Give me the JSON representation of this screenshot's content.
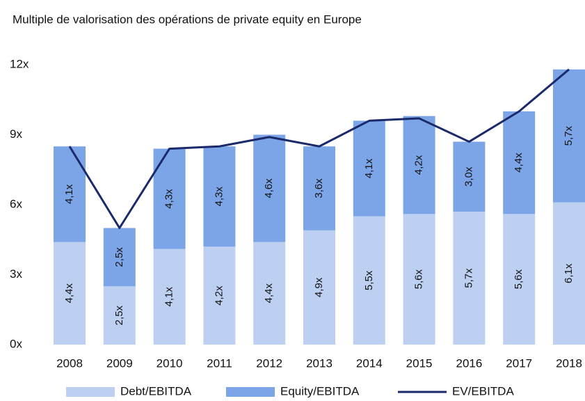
{
  "chart_data": {
    "type": "bar_line",
    "title": "Multiple de valorisation des opérations de private equity en Europe",
    "categories": [
      "2008",
      "2009",
      "2010",
      "2011",
      "2012",
      "2013",
      "2014",
      "2015",
      "2016",
      "2017",
      "2018"
    ],
    "stacked": true,
    "series": [
      {
        "name": "Debt/EBITDA",
        "color": "#bdd0f1",
        "type": "bar",
        "values": [
          4.4,
          2.5,
          4.1,
          4.2,
          4.4,
          4.9,
          5.5,
          5.6,
          5.7,
          5.6,
          6.1
        ],
        "value_labels": [
          "4,4x",
          "2,5x",
          "4,1x",
          "4,2x",
          "4,4x",
          "4,9x",
          "5,5x",
          "5,6x",
          "5,7x",
          "5,6x",
          "6,1x"
        ]
      },
      {
        "name": "Equity/EBITDA",
        "color": "#7ca5e7",
        "type": "bar",
        "values": [
          4.1,
          2.5,
          4.3,
          4.3,
          4.6,
          3.6,
          4.1,
          4.2,
          3.0,
          4.4,
          5.7
        ],
        "value_labels": [
          "4,1x",
          "2,5x",
          "4,3x",
          "4,3x",
          "4,6x",
          "3,6x",
          "4,1x",
          "4,2x",
          "3,0x",
          "4,4x",
          "5,7x"
        ]
      },
      {
        "name": "EV/EBITDA",
        "color": "#1b2a6b",
        "type": "line",
        "values": [
          8.5,
          5.0,
          8.4,
          8.5,
          8.9,
          8.5,
          9.6,
          9.7,
          8.7,
          10.0,
          11.8
        ]
      }
    ],
    "ylim": [
      0,
      12
    ],
    "yticks": [
      {
        "value": 0,
        "label": "0x"
      },
      {
        "value": 3,
        "label": "3x"
      },
      {
        "value": 6,
        "label": "6x"
      },
      {
        "value": 9,
        "label": "9x"
      },
      {
        "value": 12,
        "label": "12x"
      }
    ],
    "grid": false,
    "legend": "bottom"
  }
}
